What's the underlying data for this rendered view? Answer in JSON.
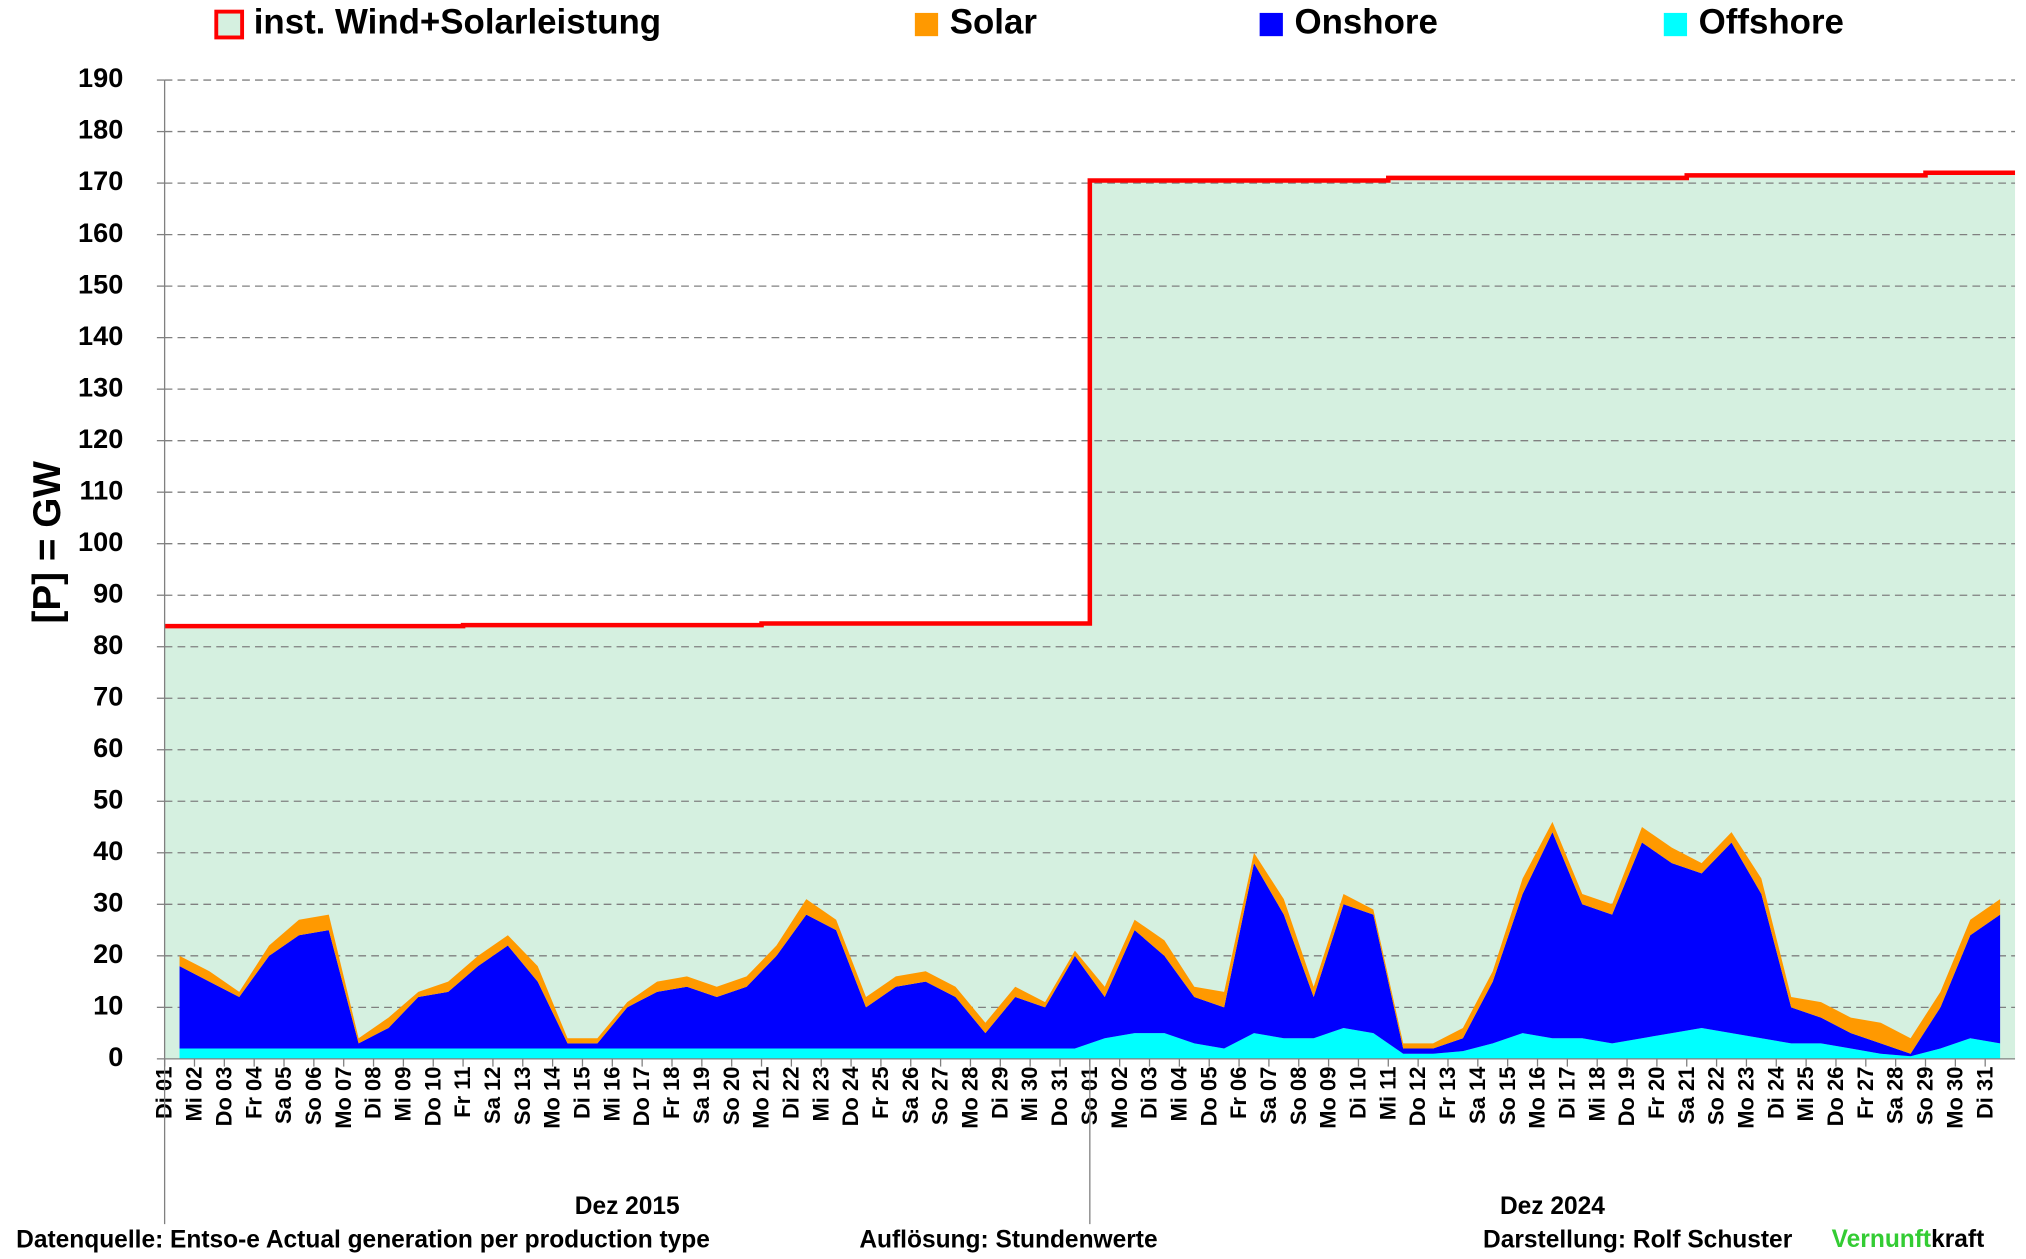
{
  "chart_data": {
    "type": "area",
    "stacked": true,
    "ylabel": "[P] = GW",
    "ylim": [
      0,
      190
    ],
    "yticks": [
      0,
      10,
      20,
      30,
      40,
      50,
      60,
      70,
      80,
      90,
      100,
      110,
      120,
      130,
      140,
      150,
      160,
      170,
      180,
      190
    ],
    "grid": true,
    "group_labels": [
      "Dez 2015",
      "Dez 2024"
    ],
    "categories": [
      "Di 01",
      "Mi 02",
      "Do 03",
      "Fr 04",
      "Sa 05",
      "So 06",
      "Mo 07",
      "Di 08",
      "Mi 09",
      "Do 10",
      "Fr 11",
      "Sa 12",
      "So 13",
      "Mo 14",
      "Di 15",
      "Mi 16",
      "Do 17",
      "Fr 18",
      "Sa 19",
      "So 20",
      "Mo 21",
      "Di 22",
      "Mi 23",
      "Do 24",
      "Fr 25",
      "Sa 26",
      "So 27",
      "Mo 28",
      "Di 29",
      "Mi 30",
      "Do 31",
      "So 01",
      "Mo 02",
      "Di 03",
      "Mi 04",
      "Do 05",
      "Fr 06",
      "Sa 07",
      "So 08",
      "Mo 09",
      "Di 10",
      "Mi 11",
      "Do 12",
      "Fr 13",
      "Sa 14",
      "So 15",
      "Mo 16",
      "Di 17",
      "Mi 18",
      "Do 19",
      "Fr 20",
      "Sa 21",
      "So 22",
      "Mo 23",
      "Di 24",
      "Mi 25",
      "Do 26",
      "Fr 27",
      "Sa 28",
      "So 29",
      "Mo 30",
      "Di 31"
    ],
    "capacity": {
      "name": "inst.  Wind+Solarleistung",
      "color": "#ff0000",
      "fill": "#d5f0e0",
      "values": [
        84,
        84,
        84,
        84,
        84,
        84,
        84,
        84,
        84,
        84,
        84.2,
        84.2,
        84.2,
        84.2,
        84.2,
        84.2,
        84.2,
        84.2,
        84.2,
        84.2,
        84.5,
        84.5,
        84.5,
        84.5,
        84.5,
        84.5,
        84.5,
        84.5,
        84.5,
        84.5,
        84.5,
        170.5,
        170.5,
        170.5,
        170.5,
        170.5,
        170.5,
        170.5,
        170.5,
        170.5,
        170.5,
        171,
        171,
        171,
        171,
        171,
        171,
        171,
        171,
        171,
        171,
        171.5,
        171.5,
        171.5,
        171.5,
        171.5,
        171.5,
        171.5,
        171.5,
        172,
        172,
        172
      ]
    },
    "series": [
      {
        "name": "Offshore",
        "color": "#00ffff",
        "values": [
          2,
          2,
          2,
          2,
          2,
          2,
          2,
          2,
          2,
          2,
          2,
          2,
          2,
          2,
          2,
          2,
          2,
          2,
          2,
          2,
          2,
          2,
          2,
          2,
          2,
          2,
          2,
          2,
          2,
          2,
          2,
          4,
          5,
          5,
          3,
          2,
          5,
          4,
          4,
          6,
          5,
          1,
          1,
          1.5,
          3,
          5,
          4,
          4,
          3,
          4,
          5,
          6,
          5,
          4,
          3,
          3,
          2,
          1,
          0.5,
          2,
          4,
          3
        ]
      },
      {
        "name": "Onshore",
        "color": "#0000ff",
        "values": [
          16,
          13,
          10,
          18,
          22,
          23,
          1,
          4,
          10,
          11,
          16,
          20,
          13,
          1,
          1,
          8,
          11,
          12,
          10,
          12,
          18,
          26,
          23,
          8,
          12,
          13,
          10,
          3,
          10,
          8,
          18,
          8,
          20,
          15,
          9,
          8,
          33,
          24,
          8,
          24,
          23,
          1,
          1,
          2.5,
          12,
          27,
          40,
          26,
          25,
          38,
          33,
          30,
          37,
          28,
          7,
          5,
          3,
          2,
          0.5,
          8,
          20,
          25
        ]
      },
      {
        "name": "Solar",
        "color": "#ff9900",
        "values": [
          2,
          2,
          1,
          2,
          3,
          3,
          1,
          2,
          1,
          2,
          2,
          2,
          3,
          1,
          1,
          1,
          2,
          2,
          2,
          2,
          2,
          3,
          2,
          2,
          2,
          2,
          2,
          2,
          2,
          1,
          1,
          2,
          2,
          3,
          2,
          3,
          2,
          3,
          2,
          2,
          1,
          1,
          1,
          2,
          2,
          3,
          2,
          2,
          2,
          3,
          3,
          2,
          2,
          3,
          2,
          3,
          3,
          4,
          3,
          3,
          3,
          3
        ]
      }
    ],
    "footer": {
      "source": "Datenquelle: Entso-e  Actual generation per production type",
      "resolution": "Auflösung: Stundenwerte",
      "author": "Darstellung:  Rolf Schuster",
      "brand": [
        {
          "text": "Vernunft",
          "color": "#33cc33"
        },
        {
          "text": "kraft",
          "color": "#000000"
        }
      ]
    }
  }
}
